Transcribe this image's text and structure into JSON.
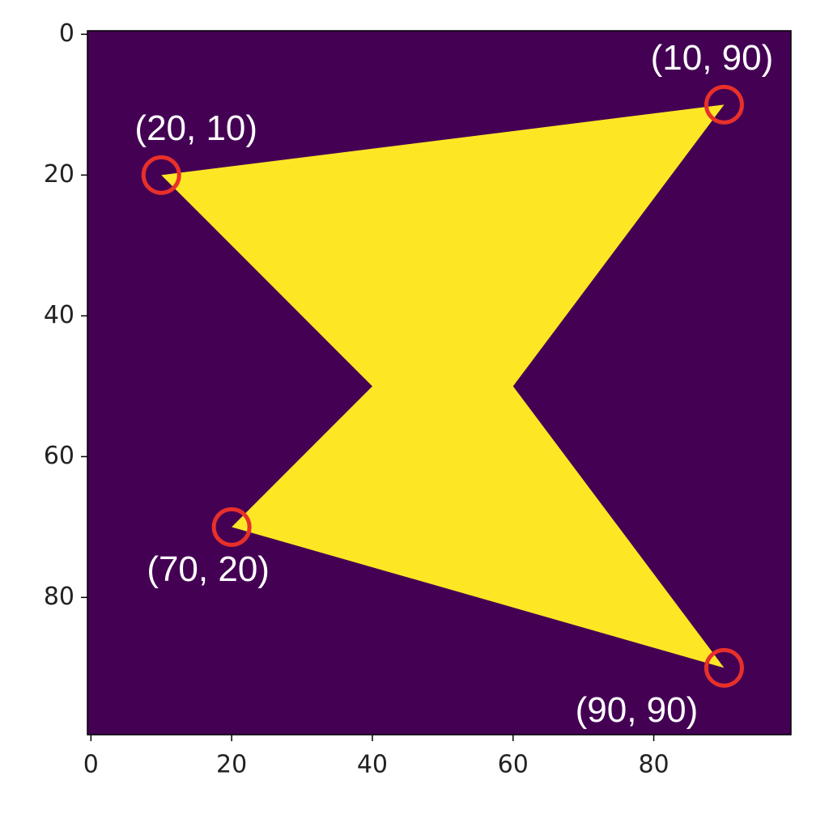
{
  "chart_data": {
    "type": "image",
    "xlim": [
      -0.5,
      99.5
    ],
    "ylim": [
      99.5,
      -0.5
    ],
    "xticks": [
      0,
      20,
      40,
      60,
      80
    ],
    "yticks": [
      0,
      20,
      40,
      60,
      80
    ],
    "background_color": "#440154",
    "fill_color": "#fde725",
    "marker_color": "#e8302a",
    "polygon": [
      [
        10,
        20
      ],
      [
        90,
        10
      ],
      [
        60,
        50
      ],
      [
        90,
        90
      ],
      [
        20,
        70
      ],
      [
        40,
        50
      ]
    ],
    "annotations": [
      {
        "text": "(20, 10)",
        "row": 20,
        "col": 10
      },
      {
        "text": "(10, 90)",
        "row": 10,
        "col": 90
      },
      {
        "text": "(70, 20)",
        "row": 70,
        "col": 20
      },
      {
        "text": "(90, 90)",
        "row": 90,
        "col": 90
      }
    ]
  }
}
